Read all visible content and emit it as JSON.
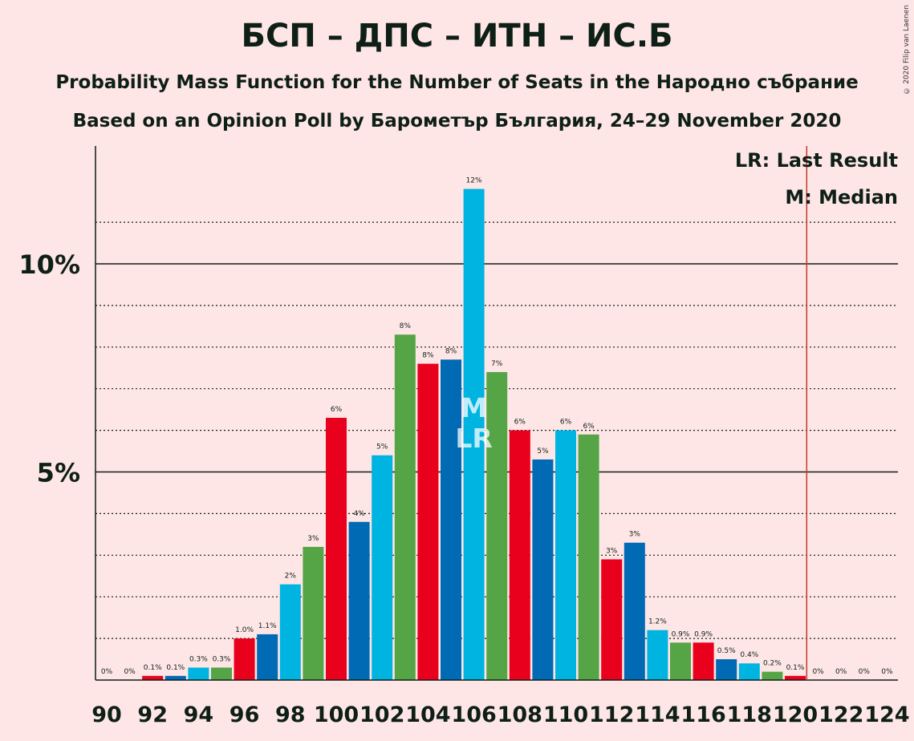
{
  "title": "БСП – ДПС – ИТН – ИС.Б",
  "subtitle1": "Probability Mass Function for the Number of Seats in the Народно събрание",
  "subtitle2": "Based on an Opinion Poll by Барометър България, 24–29 November 2020",
  "copyright": "© 2020 Filip van Laenen",
  "legend": {
    "last_result": "LR: Last Result",
    "median": "M: Median"
  },
  "marker_labels": {
    "median": "M",
    "last_result": "LR"
  },
  "colors": {
    "background": "#FFE6E6",
    "cycle": [
      "#E8001C",
      "#006AB5",
      "#00B4E1",
      "#55A546"
    ],
    "majority_line": "#C0392B"
  },
  "chart_data": {
    "type": "bar",
    "x": [
      90,
      91,
      92,
      93,
      94,
      95,
      96,
      97,
      98,
      99,
      100,
      101,
      102,
      103,
      104,
      105,
      106,
      107,
      108,
      109,
      110,
      111,
      112,
      113,
      114,
      115,
      116,
      117,
      118,
      119,
      120,
      121,
      122,
      123,
      124
    ],
    "values": [
      0,
      0,
      0.1,
      0.1,
      0.3,
      0.3,
      1.0,
      1.1,
      2.3,
      3.2,
      6.3,
      3.8,
      5.4,
      8.3,
      7.6,
      7.7,
      11.8,
      7.4,
      6.0,
      5.3,
      6.0,
      5.9,
      2.9,
      3.3,
      1.2,
      0.9,
      0.9,
      0.5,
      0.4,
      0.2,
      0.1,
      0,
      0,
      0,
      0
    ],
    "data_labels": [
      "0%",
      "0%",
      "0.1%",
      "0.1%",
      "0.3%",
      "0.3%",
      "1.0%",
      "1.1%",
      "2%",
      "3%",
      "6%",
      "4%",
      "5%",
      "8%",
      "8%",
      "8%",
      "12%",
      "7%",
      "6%",
      "5%",
      "6%",
      "6%",
      "3%",
      "3%",
      "1.2%",
      "0.9%",
      "0.9%",
      "0.5%",
      "0.4%",
      "0.2%",
      "0.1%",
      "0%",
      "0%",
      "0%",
      "0%"
    ],
    "x_tick_labels": [
      "90",
      "92",
      "94",
      "96",
      "98",
      "100",
      "102",
      "104",
      "106",
      "108",
      "110",
      "112",
      "114",
      "116",
      "118",
      "120",
      "122",
      "124"
    ],
    "y_tick_labels": [
      "5%",
      "10%"
    ],
    "y_major_ticks": [
      5,
      10
    ],
    "y_minor_ticks": [
      1,
      2,
      3,
      4,
      6,
      7,
      8,
      9,
      11
    ],
    "ylim": [
      0,
      12.8
    ],
    "median_seat": 106,
    "last_result_seat": 106,
    "majority_threshold_seat": 121,
    "grid": true
  }
}
